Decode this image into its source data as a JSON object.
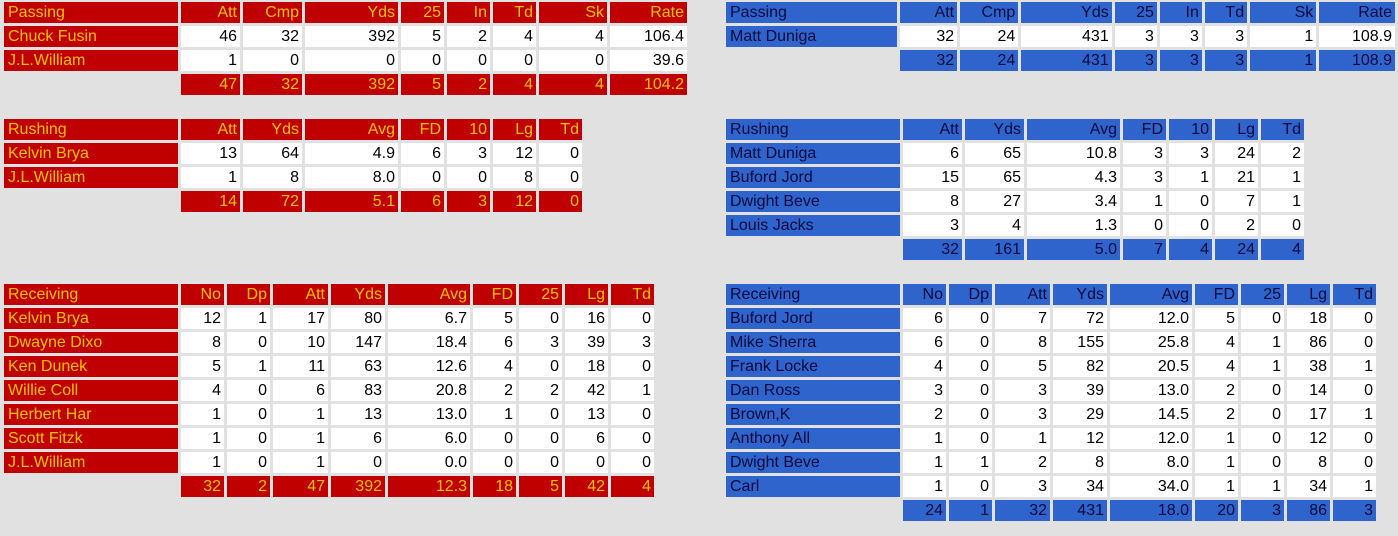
{
  "colors": {
    "away_bg": "#c00000",
    "away_text": "#f3c400",
    "home_bg": "#2f64cd",
    "home_text": "#0a0a3c",
    "cell_bg": "#ffffff",
    "page_bg": "#e1e1e1"
  },
  "away": {
    "passing": {
      "title": "Passing",
      "columns": [
        "Att",
        "Cmp",
        "Yds",
        "25",
        "In",
        "Td",
        "Sk",
        "Rate"
      ],
      "rows": [
        {
          "name": "Chuck Fusin",
          "cells": [
            "46",
            "32",
            "392",
            "5",
            "2",
            "4",
            "4",
            "106.4"
          ]
        },
        {
          "name": "J.L.William",
          "cells": [
            "1",
            "0",
            "0",
            "0",
            "0",
            "0",
            "0",
            "39.6"
          ]
        }
      ],
      "totals": [
        "47",
        "32",
        "392",
        "5",
        "2",
        "4",
        "4",
        "104.2"
      ]
    },
    "rushing": {
      "title": "Rushing",
      "columns": [
        "Att",
        "Yds",
        "Avg",
        "FD",
        "10",
        "Lg",
        "Td"
      ],
      "rows": [
        {
          "name": "Kelvin Brya",
          "cells": [
            "13",
            "64",
            "4.9",
            "6",
            "3",
            "12",
            "0"
          ]
        },
        {
          "name": "J.L.William",
          "cells": [
            "1",
            "8",
            "8.0",
            "0",
            "0",
            "8",
            "0"
          ]
        }
      ],
      "totals": [
        "14",
        "72",
        "5.1",
        "6",
        "3",
        "12",
        "0"
      ]
    },
    "receiving": {
      "title": "Receiving",
      "columns": [
        "No",
        "Dp",
        "Att",
        "Yds",
        "Avg",
        "FD",
        "25",
        "Lg",
        "Td"
      ],
      "rows": [
        {
          "name": "Kelvin Brya",
          "cells": [
            "12",
            "1",
            "17",
            "80",
            "6.7",
            "5",
            "0",
            "16",
            "0"
          ]
        },
        {
          "name": "Dwayne Dixo",
          "cells": [
            "8",
            "0",
            "10",
            "147",
            "18.4",
            "6",
            "3",
            "39",
            "3"
          ]
        },
        {
          "name": "Ken Dunek",
          "cells": [
            "5",
            "1",
            "11",
            "63",
            "12.6",
            "4",
            "0",
            "18",
            "0"
          ]
        },
        {
          "name": "Willie Coll",
          "cells": [
            "4",
            "0",
            "6",
            "83",
            "20.8",
            "2",
            "2",
            "42",
            "1"
          ]
        },
        {
          "name": "Herbert Har",
          "cells": [
            "1",
            "0",
            "1",
            "13",
            "13.0",
            "1",
            "0",
            "13",
            "0"
          ]
        },
        {
          "name": "Scott Fitzk",
          "cells": [
            "1",
            "0",
            "1",
            "6",
            "6.0",
            "0",
            "0",
            "6",
            "0"
          ]
        },
        {
          "name": "J.L.William",
          "cells": [
            "1",
            "0",
            "1",
            "0",
            "0.0",
            "0",
            "0",
            "0",
            "0"
          ]
        }
      ],
      "totals": [
        "32",
        "2",
        "47",
        "392",
        "12.3",
        "18",
        "5",
        "42",
        "4"
      ]
    }
  },
  "home": {
    "passing": {
      "title": "Passing",
      "columns": [
        "Att",
        "Cmp",
        "Yds",
        "25",
        "In",
        "Td",
        "Sk",
        "Rate"
      ],
      "rows": [
        {
          "name": "Matt Duniga",
          "cells": [
            "32",
            "24",
            "431",
            "3",
            "3",
            "3",
            "1",
            "108.9"
          ]
        }
      ],
      "totals": [
        "32",
        "24",
        "431",
        "3",
        "3",
        "3",
        "1",
        "108.9"
      ]
    },
    "rushing": {
      "title": "Rushing",
      "columns": [
        "Att",
        "Yds",
        "Avg",
        "FD",
        "10",
        "Lg",
        "Td"
      ],
      "rows": [
        {
          "name": "Matt Duniga",
          "cells": [
            "6",
            "65",
            "10.8",
            "3",
            "3",
            "24",
            "2"
          ]
        },
        {
          "name": "Buford Jord",
          "cells": [
            "15",
            "65",
            "4.3",
            "3",
            "1",
            "21",
            "1"
          ]
        },
        {
          "name": "Dwight Beve",
          "cells": [
            "8",
            "27",
            "3.4",
            "1",
            "0",
            "7",
            "1"
          ]
        },
        {
          "name": "Louis Jacks",
          "cells": [
            "3",
            "4",
            "1.3",
            "0",
            "0",
            "2",
            "0"
          ]
        }
      ],
      "totals": [
        "32",
        "161",
        "5.0",
        "7",
        "4",
        "24",
        "4"
      ]
    },
    "receiving": {
      "title": "Receiving",
      "columns": [
        "No",
        "Dp",
        "Att",
        "Yds",
        "Avg",
        "FD",
        "25",
        "Lg",
        "Td"
      ],
      "rows": [
        {
          "name": "Buford Jord",
          "cells": [
            "6",
            "0",
            "7",
            "72",
            "12.0",
            "5",
            "0",
            "18",
            "0"
          ]
        },
        {
          "name": "Mike Sherra",
          "cells": [
            "6",
            "0",
            "8",
            "155",
            "25.8",
            "4",
            "1",
            "86",
            "0"
          ]
        },
        {
          "name": "Frank Locke",
          "cells": [
            "4",
            "0",
            "5",
            "82",
            "20.5",
            "4",
            "1",
            "38",
            "1"
          ]
        },
        {
          "name": "Dan Ross",
          "cells": [
            "3",
            "0",
            "3",
            "39",
            "13.0",
            "2",
            "0",
            "14",
            "0"
          ]
        },
        {
          "name": "Brown,K",
          "cells": [
            "2",
            "0",
            "3",
            "29",
            "14.5",
            "2",
            "0",
            "17",
            "1"
          ]
        },
        {
          "name": "Anthony All",
          "cells": [
            "1",
            "0",
            "1",
            "12",
            "12.0",
            "1",
            "0",
            "12",
            "0"
          ]
        },
        {
          "name": "Dwight Beve",
          "cells": [
            "1",
            "1",
            "2",
            "8",
            "8.0",
            "1",
            "0",
            "8",
            "0"
          ]
        },
        {
          "name": "Carl",
          "cells": [
            "1",
            "0",
            "3",
            "34",
            "34.0",
            "1",
            "1",
            "34",
            "1"
          ]
        }
      ],
      "totals": [
        "24",
        "1",
        "32",
        "431",
        "18.0",
        "20",
        "3",
        "86",
        "3"
      ]
    }
  }
}
